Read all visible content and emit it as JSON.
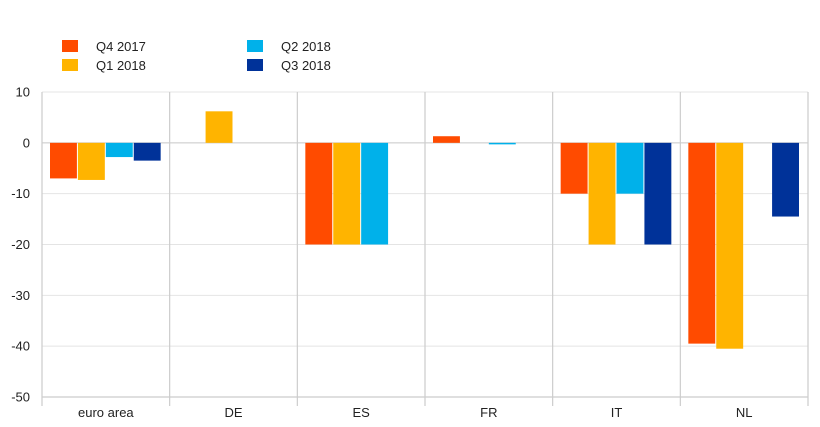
{
  "chart_data": {
    "type": "bar",
    "title": "",
    "xlabel": "",
    "ylabel": "",
    "ylim": [
      -50,
      10
    ],
    "yticks": [
      10,
      0,
      -10,
      -20,
      -30,
      -40,
      -50
    ],
    "grid": "horizontal",
    "legend_position": "top-left",
    "categories": [
      "euro area",
      "DE",
      "ES",
      "FR",
      "IT",
      "NL"
    ],
    "series": [
      {
        "name": "Q4 2017",
        "color": "#ff4b00",
        "values": [
          -7,
          0,
          -20,
          1.3,
          -10,
          -39.5
        ]
      },
      {
        "name": "Q1 2018",
        "color": "#ffb400",
        "values": [
          -7.3,
          6.2,
          -20,
          0,
          -20,
          -40.5
        ]
      },
      {
        "name": "Q2 2018",
        "color": "#00b1ea",
        "values": [
          -2.8,
          0,
          -20,
          -0.3,
          -10,
          0
        ]
      },
      {
        "name": "Q3 2018",
        "color": "#003299",
        "values": [
          -3.5,
          0,
          0,
          0,
          -20,
          -14.5
        ]
      }
    ]
  }
}
